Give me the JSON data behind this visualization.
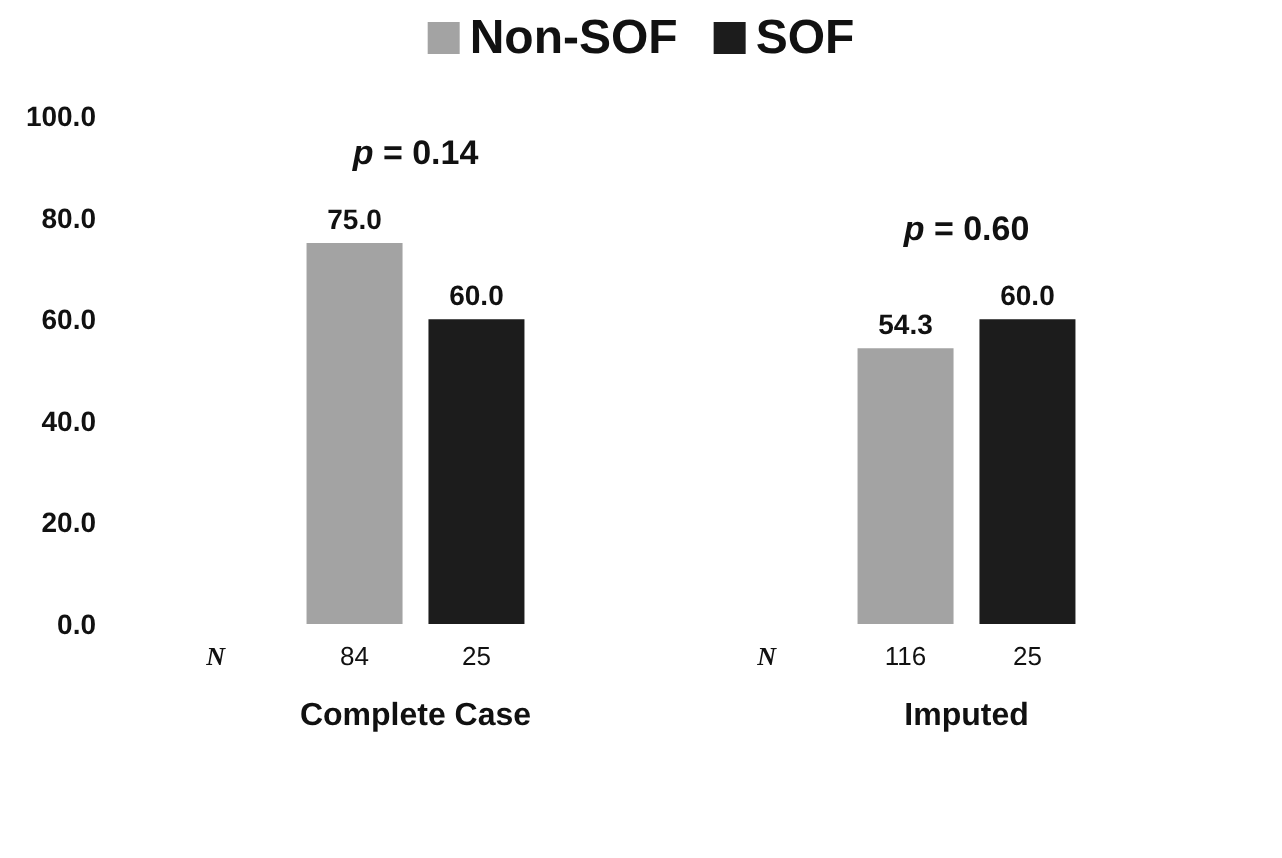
{
  "chart_data": {
    "type": "bar",
    "categories": [
      "Complete Case",
      "Imputed"
    ],
    "series": [
      {
        "name": "Non-SOF",
        "color": "#a3a3a3",
        "values": [
          75.0,
          54.3
        ],
        "value_labels": [
          "75.0",
          "54.3"
        ]
      },
      {
        "name": "SOF",
        "color": "#1c1c1c",
        "values": [
          60.0,
          60.0
        ],
        "value_labels": [
          "60.0",
          "60.0"
        ]
      }
    ],
    "ylim": [
      0,
      100
    ],
    "yticks": [
      {
        "value": 0,
        "label": "0.0"
      },
      {
        "value": 20,
        "label": "20.0"
      },
      {
        "value": 40,
        "label": "40.0"
      },
      {
        "value": 60,
        "label": "60.0"
      },
      {
        "value": 80,
        "label": "80.0"
      },
      {
        "value": 100,
        "label": "100.0"
      }
    ],
    "grid": false,
    "legend": "top",
    "annotations": [
      "p = 0.14",
      "p = 0.60",
      "N",
      "84",
      "25",
      "N",
      "116",
      "25"
    ]
  }
}
